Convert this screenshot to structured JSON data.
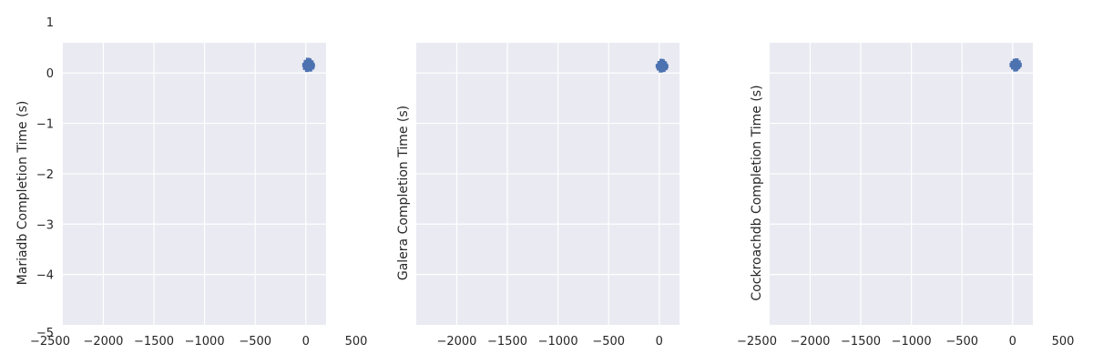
{
  "chart_data": [
    {
      "type": "scatter",
      "ylabel": "Mariadb Completion Time (s)",
      "xlabel": "",
      "xticks": [
        -2000,
        -1500,
        -1000,
        -500,
        0
      ],
      "yticks": [
        0,
        -1,
        -2,
        -3,
        -4
      ],
      "outer_tick_labels": {
        "x_left": "−2500",
        "x_right": "500",
        "y_top": "1",
        "y_bottom": "−5"
      },
      "xlim": [
        -2400,
        200
      ],
      "ylim": [
        -5,
        0.6
      ],
      "grid": true,
      "marker_color": "#4c72b0",
      "x": [
        5,
        10,
        15,
        20,
        25,
        30,
        35,
        40,
        45,
        50,
        12,
        28,
        44,
        20,
        36
      ],
      "y": [
        0.16,
        0.15,
        0.17,
        0.14,
        0.16,
        0.18,
        0.15,
        0.16,
        0.17,
        0.15,
        0.1,
        0.12,
        0.11,
        0.22,
        0.21
      ]
    },
    {
      "type": "scatter",
      "ylabel": "Galera Completion Time (s)",
      "xlabel": "",
      "xticks": [
        -2000,
        -1500,
        -1000,
        -500,
        0
      ],
      "yticks": [
        0,
        -1,
        -2,
        -3,
        -4
      ],
      "outer_tick_labels": {},
      "xlim": [
        -2400,
        200
      ],
      "ylim": [
        -5,
        0.6
      ],
      "grid": true,
      "marker_color": "#4c72b0",
      "x": [
        5,
        10,
        15,
        20,
        25,
        30,
        35,
        40,
        45,
        50,
        15,
        30,
        42,
        22,
        36
      ],
      "y": [
        0.14,
        0.13,
        0.15,
        0.12,
        0.14,
        0.16,
        0.13,
        0.14,
        0.15,
        0.13,
        0.09,
        0.1,
        0.1,
        0.2,
        0.19
      ]
    },
    {
      "type": "scatter",
      "ylabel": "Cockroachdb Completion Time (s)",
      "xlabel": "",
      "xticks": [
        -2000,
        -1500,
        -1000,
        -500,
        0
      ],
      "yticks": [
        0,
        -1,
        -2,
        -3,
        -4
      ],
      "outer_tick_labels": {
        "x_left": "−2500",
        "x_right": "500"
      },
      "xlim": [
        -2400,
        200
      ],
      "ylim": [
        -5,
        0.6
      ],
      "grid": true,
      "marker_color": "#4c72b0",
      "x": [
        10,
        15,
        20,
        25,
        30,
        35,
        40,
        45,
        50,
        25,
        35,
        20,
        40
      ],
      "y": [
        0.16,
        0.15,
        0.17,
        0.16,
        0.15,
        0.17,
        0.16,
        0.15,
        0.16,
        0.11,
        0.12,
        0.2,
        0.21
      ]
    }
  ]
}
